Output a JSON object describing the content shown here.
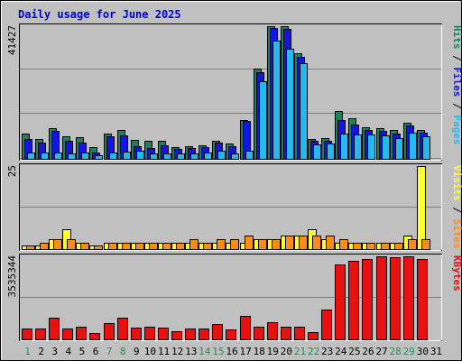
{
  "title": "Daily usage for June 2025",
  "colors": {
    "background": "#C0C0C0",
    "panel": "#C0C0C0",
    "border_dark": "#000000",
    "border_light": "#FFFFFF",
    "title_text": "#0000CC",
    "grid": "#808080",
    "hits": "#1D8060",
    "files": "#1515E0",
    "pages": "#28B8F0",
    "visits": "#FFFF33",
    "sites": "#FF8C19",
    "kbytes": "#E81010",
    "weekday_label": "#000000",
    "weekend_label": "#2E8B57"
  },
  "chart_data": {
    "type": "bar",
    "title": "Daily usage for June 2025",
    "categories": [
      "1",
      "2",
      "3",
      "4",
      "5",
      "6",
      "7",
      "8",
      "9",
      "10",
      "11",
      "12",
      "13",
      "14",
      "15",
      "16",
      "17",
      "18",
      "19",
      "20",
      "21",
      "22",
      "23",
      "24",
      "25",
      "26",
      "27",
      "28",
      "29",
      "30",
      "31"
    ],
    "weekend_days": [
      "1",
      "7",
      "8",
      "14",
      "15",
      "21",
      "22",
      "28",
      "29"
    ],
    "panels": [
      {
        "name": "requests",
        "ymax_label": "41427",
        "ymax": 41427,
        "right_labels": [
          {
            "text": "Pages",
            "color": "#28B8F0"
          },
          {
            "text": " / ",
            "color": "#000000"
          },
          {
            "text": "Files",
            "color": "#1515E0"
          },
          {
            "text": " / ",
            "color": "#000000"
          },
          {
            "text": "Hits",
            "color": "#1D8060"
          }
        ],
        "series": [
          {
            "name": "Hits",
            "values": [
              7800,
              6200,
              9700,
              7000,
              6900,
              3600,
              7900,
              8900,
              5800,
              5700,
              5600,
              3800,
              4000,
              4200,
              5500,
              4900,
              12200,
              28300,
              41427,
              41427,
              33000,
              6300,
              6600,
              15000,
              12800,
              9800,
              9500,
              8900,
              11200,
              9000,
              0
            ]
          },
          {
            "name": "Files",
            "values": [
              6100,
              5000,
              8600,
              5600,
              5000,
              2000,
              7100,
              7300,
              4000,
              3300,
              4300,
              3200,
              3500,
              3600,
              5000,
              4000,
              11800,
              27100,
              40900,
              40700,
              31900,
              5500,
              5500,
              12100,
              10800,
              8900,
              8700,
              7900,
              10300,
              8300,
              0
            ]
          },
          {
            "name": "Pages",
            "values": [
              2000,
              1900,
              2000,
              1700,
              2100,
              1000,
              2000,
              2200,
              2400,
              1700,
              1800,
              1700,
              1700,
              2100,
              2400,
              1800,
              2600,
              24200,
              37000,
              34400,
              29800,
              4400,
              4700,
              8000,
              7700,
              7500,
              7300,
              6500,
              8100,
              7000,
              0
            ]
          }
        ]
      },
      {
        "name": "visitors",
        "ymax_label": "25",
        "ymax": 25,
        "right_labels": [
          {
            "text": "Sites",
            "color": "#FF8C19"
          },
          {
            "text": " / ",
            "color": "#000000"
          },
          {
            "text": "Visits",
            "color": "#FFFF33"
          }
        ],
        "series": [
          {
            "name": "Visits",
            "values": [
              1,
              1,
              3,
              6,
              2,
              1,
              2,
              2,
              2,
              2,
              2,
              2,
              2,
              2,
              2,
              2,
              2,
              3,
              3,
              4,
              4,
              6,
              3,
              2,
              2,
              2,
              2,
              2,
              4,
              25,
              0
            ]
          },
          {
            "name": "Sites",
            "values": [
              1,
              2,
              3,
              3,
              2,
              1,
              2,
              2,
              2,
              2,
              2,
              2,
              3,
              2,
              3,
              3,
              4,
              3,
              3,
              4,
              4,
              4,
              4,
              3,
              2,
              2,
              2,
              2,
              3,
              3,
              0
            ]
          }
        ]
      },
      {
        "name": "kbytes",
        "ymax_label": "3535344",
        "ymax": 3535344,
        "right_labels": [
          {
            "text": "KBytes",
            "color": "#E81010"
          }
        ],
        "series": [
          {
            "name": "KBytes",
            "values": [
              480000,
              460000,
              920000,
              480000,
              540000,
              280000,
              680000,
              940000,
              500000,
              520000,
              500000,
              330000,
              480000,
              460000,
              640000,
              440000,
              1000000,
              550000,
              720000,
              520000,
              540000,
              310000,
              1260000,
              3200000,
              3330000,
              3430000,
              3530000,
              3500000,
              3535344,
              3430000,
              0
            ]
          }
        ]
      }
    ]
  }
}
